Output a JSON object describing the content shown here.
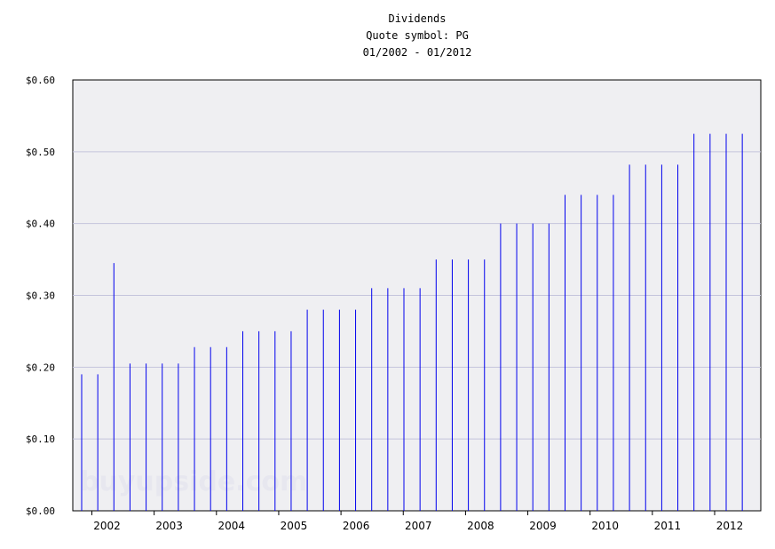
{
  "chart_data": {
    "type": "bar",
    "title": "Dividends",
    "subtitle": "Quote symbol: PG",
    "date_range": "01/2002 - 01/2012",
    "xlabel": "",
    "ylabel": "",
    "ylim": [
      0,
      0.6
    ],
    "y_ticks": [
      "$0.00",
      "$0.10",
      "$0.20",
      "$0.30",
      "$0.40",
      "$0.50",
      "$0.60"
    ],
    "y_tick_values": [
      0,
      0.1,
      0.2,
      0.3,
      0.4,
      0.5,
      0.6
    ],
    "x_ticks": [
      "2002",
      "2003",
      "2004",
      "2005",
      "2006",
      "2007",
      "2008",
      "2009",
      "2010",
      "2011",
      "2012"
    ],
    "grid": "horizontal",
    "watermark": "buyupside.com",
    "series_color": "#0000ee",
    "values": [
      0.19,
      0.19,
      0.345,
      0.205,
      0.205,
      0.205,
      0.205,
      0.228,
      0.228,
      0.228,
      0.25,
      0.25,
      0.25,
      0.25,
      0.28,
      0.28,
      0.28,
      0.28,
      0.31,
      0.31,
      0.31,
      0.31,
      0.35,
      0.35,
      0.35,
      0.35,
      0.4,
      0.4,
      0.4,
      0.4,
      0.44,
      0.44,
      0.44,
      0.44,
      0.482,
      0.482,
      0.482,
      0.482,
      0.525,
      0.525,
      0.525,
      0.525
    ]
  }
}
